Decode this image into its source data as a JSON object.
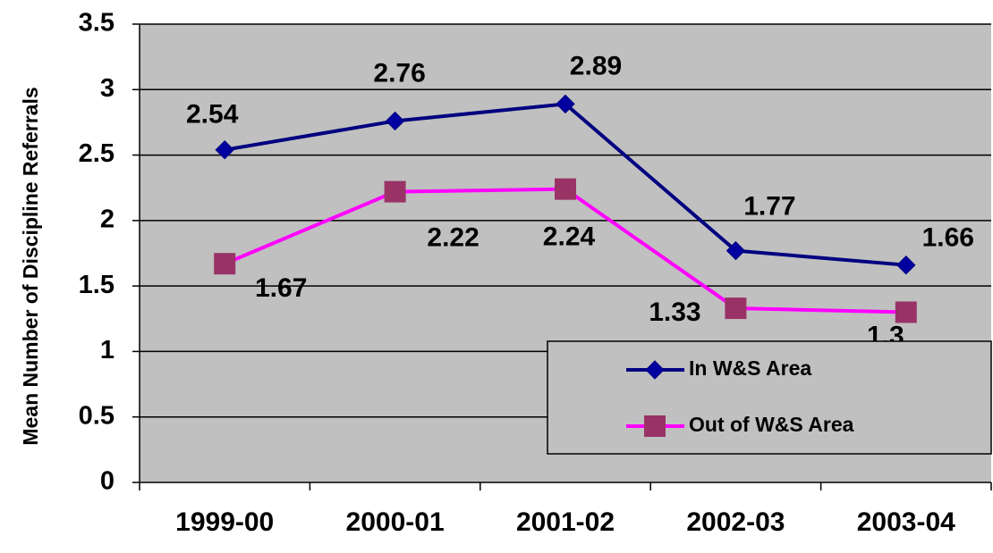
{
  "chart_data": {
    "type": "line",
    "y_label": "Mean Number of Discipline Referrals",
    "categories": [
      "1999-00",
      "2000-01",
      "2001-02",
      "2002-03",
      "2003-04"
    ],
    "series": [
      {
        "name": "In W&S Area",
        "color": "#000080",
        "marker_color": "#0000a0",
        "values": [
          2.54,
          2.76,
          2.89,
          1.77,
          1.66
        ]
      },
      {
        "name": "Out of W&S Area",
        "color": "#ff00ff",
        "marker_color": "#993366",
        "values": [
          1.67,
          2.22,
          2.24,
          1.33,
          1.3
        ]
      }
    ],
    "ylim": [
      0,
      3.5
    ],
    "yticks": [
      0,
      0.5,
      1,
      1.5,
      2,
      2.5,
      3,
      3.5
    ],
    "grid": true,
    "legend": "lower right"
  }
}
